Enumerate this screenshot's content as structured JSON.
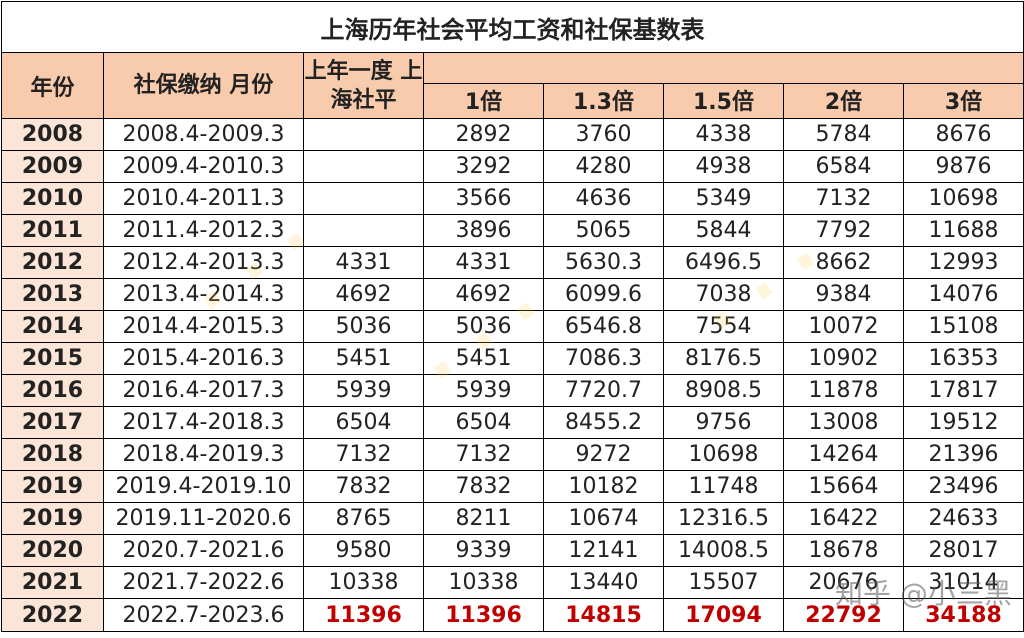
{
  "title": "上海历年社会平均工资和社保基数表",
  "headers": {
    "year": "年份",
    "period": "社保缴纳 月份",
    "avg_wage": "上年一度 上海社平",
    "multipliers": [
      "1倍",
      "1.3倍",
      "1.5倍",
      "2倍",
      "3倍"
    ]
  },
  "rows": [
    {
      "year": "2008",
      "period": "2008.4-2009.3",
      "avg": "",
      "m1": "2892",
      "m13": "3760",
      "m15": "4338",
      "m2": "5784",
      "m3": "8676"
    },
    {
      "year": "2009",
      "period": "2009.4-2010.3",
      "avg": "",
      "m1": "3292",
      "m13": "4280",
      "m15": "4938",
      "m2": "6584",
      "m3": "9876"
    },
    {
      "year": "2010",
      "period": "2010.4-2011.3",
      "avg": "",
      "m1": "3566",
      "m13": "4636",
      "m15": "5349",
      "m2": "7132",
      "m3": "10698"
    },
    {
      "year": "2011",
      "period": "2011.4-2012.3",
      "avg": "",
      "m1": "3896",
      "m13": "5065",
      "m15": "5844",
      "m2": "7792",
      "m3": "11688"
    },
    {
      "year": "2012",
      "period": "2012.4-2013.3",
      "avg": "4331",
      "m1": "4331",
      "m13": "5630.3",
      "m15": "6496.5",
      "m2": "8662",
      "m3": "12993"
    },
    {
      "year": "2013",
      "period": "2013.4-2014.3",
      "avg": "4692",
      "m1": "4692",
      "m13": "6099.6",
      "m15": "7038",
      "m2": "9384",
      "m3": "14076"
    },
    {
      "year": "2014",
      "period": "2014.4-2015.3",
      "avg": "5036",
      "m1": "5036",
      "m13": "6546.8",
      "m15": "7554",
      "m2": "10072",
      "m3": "15108"
    },
    {
      "year": "2015",
      "period": "2015.4-2016.3",
      "avg": "5451",
      "m1": "5451",
      "m13": "7086.3",
      "m15": "8176.5",
      "m2": "10902",
      "m3": "16353"
    },
    {
      "year": "2016",
      "period": "2016.4-2017.3",
      "avg": "5939",
      "m1": "5939",
      "m13": "7720.7",
      "m15": "8908.5",
      "m2": "11878",
      "m3": "17817"
    },
    {
      "year": "2017",
      "period": "2017.4-2018.3",
      "avg": "6504",
      "m1": "6504",
      "m13": "8455.2",
      "m15": "9756",
      "m2": "13008",
      "m3": "19512"
    },
    {
      "year": "2018",
      "period": "2018.4-2019.3",
      "avg": "7132",
      "m1": "7132",
      "m13": "9272",
      "m15": "10698",
      "m2": "14264",
      "m3": "21396"
    },
    {
      "year": "2019",
      "period": "2019.4-2019.10",
      "avg": "7832",
      "m1": "7832",
      "m13": "10182",
      "m15": "11748",
      "m2": "15664",
      "m3": "23496"
    },
    {
      "year": "2019",
      "period": "2019.11-2020.6",
      "avg": "8765",
      "m1": "8211",
      "m13": "10674",
      "m15": "12316.5",
      "m2": "16422",
      "m3": "24633"
    },
    {
      "year": "2020",
      "period": "2020.7-2021.6",
      "avg": "9580",
      "m1": "9339",
      "m13": "12141",
      "m15": "14008.5",
      "m2": "18678",
      "m3": "28017"
    },
    {
      "year": "2021",
      "period": "2021.7-2022.6",
      "avg": "10338",
      "m1": "10338",
      "m13": "13440",
      "m15": "15507",
      "m2": "20676",
      "m3": "31014"
    },
    {
      "year": "2022",
      "period": "2022.7-2023.6",
      "avg": "11396",
      "m1": "11396",
      "m13": "14815",
      "m15": "17094",
      "m2": "22792",
      "m3": "34188"
    }
  ],
  "highlight_row_year": "2022",
  "highlight_color": "#c00000",
  "header_fill": "#f8cbad",
  "year_fill": "#fbe5d6",
  "watermark": "知乎 @小三黑"
}
